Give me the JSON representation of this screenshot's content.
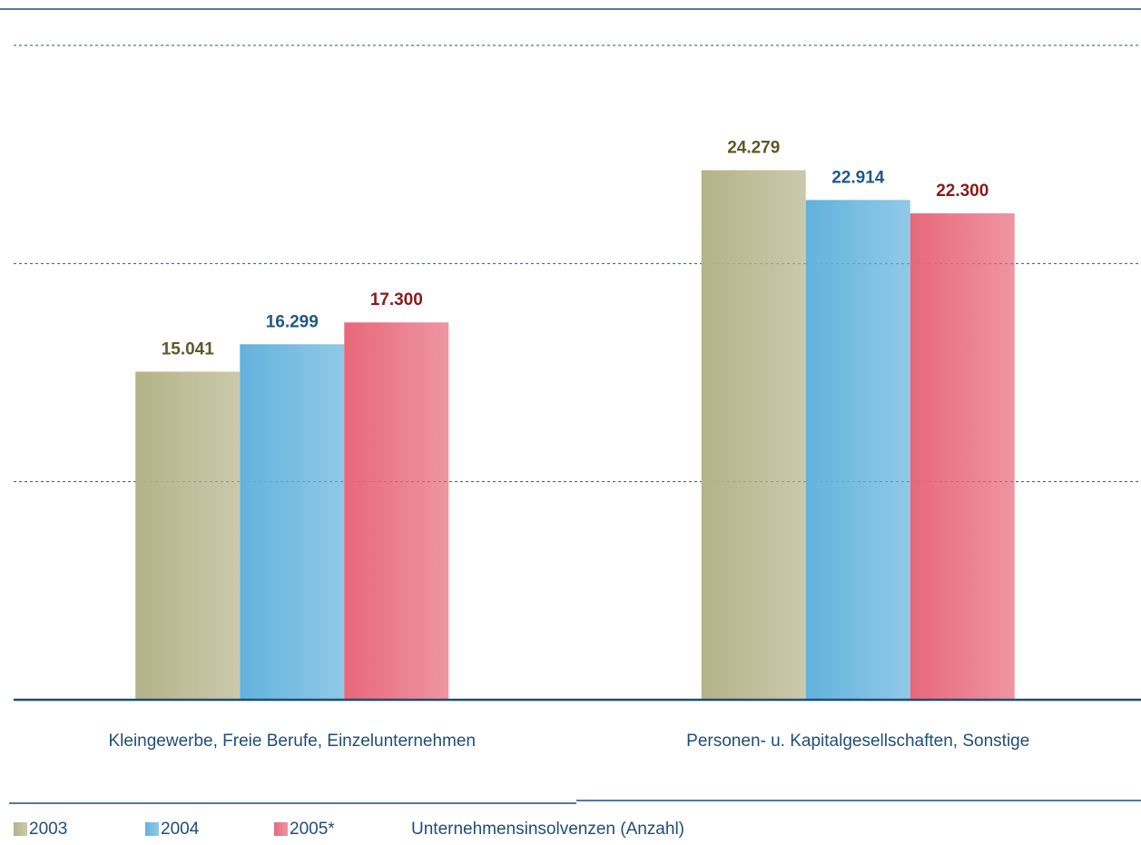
{
  "chart_data": {
    "type": "bar",
    "categories": [
      "Kleingewerbe, Freie Berufe, Einzelunternehmen",
      "Personen- u. Kapitalgesellschaften, Sonstige"
    ],
    "series": [
      {
        "name": "2003",
        "color": "#b3b388",
        "label_color": "#5a5a28",
        "values": [
          15041,
          24279
        ],
        "value_labels": [
          "15.041",
          "24.279"
        ]
      },
      {
        "name": "2004",
        "color": "#62b2dd",
        "label_color": "#1f5a85",
        "values": [
          16299,
          22914
        ],
        "value_labels": [
          "16.299",
          "22.914"
        ]
      },
      {
        "name": "2005*",
        "color": "#e8687a",
        "label_color": "#8b1a1a",
        "values": [
          17300,
          22300
        ],
        "value_labels": [
          "17.300",
          "22.300"
        ]
      }
    ],
    "caption": "Unternehmensinsolvenzen (Anzahl)",
    "ylim": [
      0,
      30000
    ],
    "yticks": [
      10000,
      20000,
      30000
    ],
    "grid": true
  }
}
